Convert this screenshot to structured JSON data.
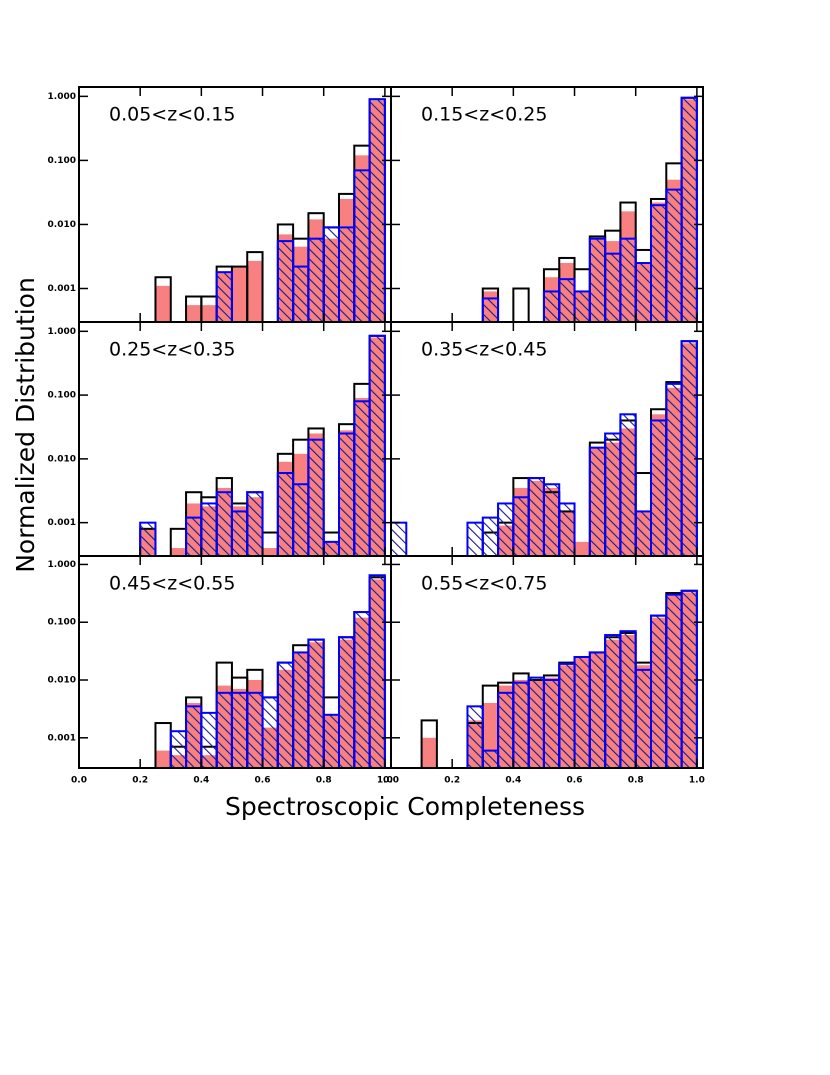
{
  "figure": {
    "xlabel": "Spectroscopic Completeness",
    "ylabel": "Normalized Distribution"
  },
  "chart_data": [
    {
      "type": "histogram",
      "title": "0.05<z<0.15",
      "log_y": true,
      "xlim": [
        0,
        1.02
      ],
      "ylim": [
        0.0003,
        1.4
      ],
      "bins": [
        0,
        0.05,
        0.1,
        0.15,
        0.2,
        0.25,
        0.3,
        0.35,
        0.4,
        0.45,
        0.5,
        0.55,
        0.6,
        0.65,
        0.7,
        0.75,
        0.8,
        0.85,
        0.9,
        0.95,
        1
      ],
      "xticks": [
        0,
        0.2,
        0.4,
        0.6,
        0.8,
        1
      ],
      "xtick_labels": false,
      "yticks": [
        {
          "value": 0.001,
          "label": "0.001"
        },
        {
          "value": 0.01,
          "label": "0.010"
        },
        {
          "value": 0.1,
          "label": "0.100"
        },
        {
          "value": 1,
          "label": "1.000"
        }
      ],
      "ytick_labels": true,
      "series": [
        {
          "style": "filled",
          "color": "#f88080",
          "values": [
            0,
            0,
            0,
            0,
            0,
            0.0011,
            0,
            0.00055,
            0.00055,
            0.0018,
            0.0022,
            0.0027,
            0,
            0.007,
            0.0045,
            0.012,
            0.006,
            0.025,
            0.12,
            0.85
          ]
        },
        {
          "style": "outline",
          "color": "#000000",
          "values": [
            0,
            0,
            0,
            0,
            0,
            0.0015,
            0,
            0.00075,
            0.00075,
            0.0022,
            0.0022,
            0.0037,
            0,
            0.01,
            0.006,
            0.015,
            0.009,
            0.03,
            0.17,
            0.9
          ]
        },
        {
          "style": "hatched",
          "color": "#0000ff",
          "values": [
            0,
            0,
            0,
            0,
            0,
            0,
            0,
            0,
            0,
            0.0018,
            0,
            0,
            0,
            0.0055,
            0.0022,
            0.006,
            0.009,
            0.009,
            0.07,
            0.9
          ]
        }
      ]
    },
    {
      "type": "histogram",
      "title": "0.15<z<0.25",
      "log_y": true,
      "xlim": [
        0,
        1.02
      ],
      "ylim": [
        0.0003,
        1.4
      ],
      "bins": [
        0,
        0.05,
        0.1,
        0.15,
        0.2,
        0.25,
        0.3,
        0.35,
        0.4,
        0.45,
        0.5,
        0.55,
        0.6,
        0.65,
        0.7,
        0.75,
        0.8,
        0.85,
        0.9,
        0.95,
        1
      ],
      "xticks": [
        0,
        0.2,
        0.4,
        0.6,
        0.8,
        1
      ],
      "xtick_labels": false,
      "yticks": [
        0.001,
        0.01,
        0.1,
        1
      ],
      "ytick_labels": false,
      "series": [
        {
          "style": "filled",
          "color": "#f88080",
          "values": [
            0,
            0,
            0,
            0,
            0,
            0,
            0.0009,
            0,
            0,
            0,
            0.0015,
            0.0025,
            0.0009,
            0.006,
            0.0055,
            0.016,
            0.0025,
            0.022,
            0.05,
            0.9
          ]
        },
        {
          "style": "outline",
          "color": "#000000",
          "values": [
            0,
            0,
            0,
            0,
            0,
            0,
            0.001,
            0,
            0.001,
            0,
            0.002,
            0.003,
            0.002,
            0.0065,
            0.008,
            0.022,
            0.004,
            0.025,
            0.09,
            0.95
          ]
        },
        {
          "style": "hatched",
          "color": "#0000ff",
          "values": [
            0,
            0,
            0,
            0,
            0,
            0,
            0.0007,
            0,
            0,
            0,
            0.0009,
            0.0014,
            0.0009,
            0.006,
            0.0035,
            0.006,
            0.0025,
            0.02,
            0.035,
            0.95
          ]
        }
      ]
    },
    {
      "type": "histogram",
      "title": "0.25<z<0.35",
      "log_y": true,
      "xlim": [
        0,
        1.02
      ],
      "ylim": [
        0.0003,
        1.4
      ],
      "bins": [
        0,
        0.05,
        0.1,
        0.15,
        0.2,
        0.25,
        0.3,
        0.35,
        0.4,
        0.45,
        0.5,
        0.55,
        0.6,
        0.65,
        0.7,
        0.75,
        0.8,
        0.85,
        0.9,
        0.95,
        1
      ],
      "xticks": [
        0,
        0.2,
        0.4,
        0.6,
        0.8,
        1
      ],
      "xtick_labels": false,
      "yticks": [
        {
          "value": 0.001,
          "label": "0.001"
        },
        {
          "value": 0.01,
          "label": "0.010"
        },
        {
          "value": 0.1,
          "label": "0.100"
        },
        {
          "value": 1,
          "label": "1.000"
        }
      ],
      "ytick_labels": true,
      "series": [
        {
          "style": "filled",
          "color": "#f88080",
          "values": [
            0,
            0,
            0,
            0,
            0.0008,
            0,
            0.0004,
            0.002,
            0.0018,
            0.0035,
            0.0018,
            0.0025,
            0.0004,
            0.009,
            0.012,
            0.025,
            0.0005,
            0.028,
            0.09,
            0.8
          ]
        },
        {
          "style": "outline",
          "color": "#000000",
          "values": [
            0,
            0,
            0,
            0,
            0.0008,
            0,
            0.0008,
            0.003,
            0.0025,
            0.005,
            0.002,
            0.003,
            0.0007,
            0.012,
            0.02,
            0.03,
            0.0007,
            0.035,
            0.15,
            0.85
          ]
        },
        {
          "style": "hatched",
          "color": "#0000ff",
          "values": [
            0,
            0,
            0,
            0,
            0.001,
            0,
            0,
            0.0012,
            0.002,
            0.003,
            0.0015,
            0.003,
            0,
            0.006,
            0.004,
            0.02,
            0.0005,
            0.025,
            0.08,
            0.85
          ]
        }
      ]
    },
    {
      "type": "histogram",
      "title": "0.35<z<0.45",
      "log_y": true,
      "xlim": [
        0,
        1.02
      ],
      "ylim": [
        0.0003,
        1.4
      ],
      "bins": [
        0,
        0.05,
        0.1,
        0.15,
        0.2,
        0.25,
        0.3,
        0.35,
        0.4,
        0.45,
        0.5,
        0.55,
        0.6,
        0.65,
        0.7,
        0.75,
        0.8,
        0.85,
        0.9,
        0.95,
        1
      ],
      "xticks": [
        0,
        0.2,
        0.4,
        0.6,
        0.8,
        1
      ],
      "xtick_labels": false,
      "yticks": [
        0.001,
        0.01,
        0.1,
        1
      ],
      "ytick_labels": false,
      "series": [
        {
          "style": "filled",
          "color": "#f88080",
          "values": [
            0,
            0,
            0,
            0,
            0,
            0,
            0,
            0.0009,
            0.0035,
            0.0045,
            0.0035,
            0.0015,
            0.0005,
            0.015,
            0.018,
            0.03,
            0.0015,
            0.05,
            0.13,
            0.65
          ]
        },
        {
          "style": "outline",
          "color": "#000000",
          "values": [
            0,
            0,
            0,
            0,
            0,
            0,
            0.0007,
            0.001,
            0.005,
            0.005,
            0.003,
            0.0015,
            0,
            0.018,
            0.02,
            0.04,
            0.006,
            0.06,
            0.16,
            0.7
          ]
        },
        {
          "style": "hatched",
          "color": "#0000ff",
          "values": [
            0.001,
            0,
            0,
            0,
            0,
            0.001,
            0.0012,
            0.002,
            0.0025,
            0.005,
            0.004,
            0.002,
            0,
            0.015,
            0.025,
            0.05,
            0.0015,
            0.04,
            0.15,
            0.7
          ]
        }
      ]
    },
    {
      "type": "histogram",
      "title": "0.45<z<0.55",
      "log_y": true,
      "xlim": [
        0,
        1.02
      ],
      "ylim": [
        0.0003,
        1.4
      ],
      "bins": [
        0,
        0.05,
        0.1,
        0.15,
        0.2,
        0.25,
        0.3,
        0.35,
        0.4,
        0.45,
        0.5,
        0.55,
        0.6,
        0.65,
        0.7,
        0.75,
        0.8,
        0.85,
        0.9,
        0.95,
        1
      ],
      "xticks": [
        {
          "value": 0,
          "label": "0.0"
        },
        {
          "value": 0.2,
          "label": "0.2"
        },
        {
          "value": 0.4,
          "label": "0.4"
        },
        {
          "value": 0.6,
          "label": "0.6"
        },
        {
          "value": 0.8,
          "label": "0.8"
        },
        {
          "value": 1,
          "label": "1.0"
        }
      ],
      "xtick_labels": true,
      "yticks": [
        {
          "value": 0.001,
          "label": "0.001"
        },
        {
          "value": 0.01,
          "label": "0.010"
        },
        {
          "value": 0.1,
          "label": "0.100"
        },
        {
          "value": 1,
          "label": "1.000"
        }
      ],
      "ytick_labels": true,
      "series": [
        {
          "style": "filled",
          "color": "#f88080",
          "values": [
            0,
            0,
            0,
            0,
            0,
            0.0006,
            0.0005,
            0.004,
            0.0005,
            0.008,
            0.007,
            0.01,
            0.0015,
            0.015,
            0.03,
            0.045,
            0.0025,
            0.05,
            0.12,
            0.55
          ]
        },
        {
          "style": "outline",
          "color": "#000000",
          "values": [
            0,
            0,
            0,
            0,
            0,
            0.0018,
            0.0007,
            0.005,
            0.0007,
            0.02,
            0.011,
            0.015,
            0.005,
            0.02,
            0.04,
            0.05,
            0.005,
            0.055,
            0.15,
            0.6
          ]
        },
        {
          "style": "hatched",
          "color": "#0000ff",
          "values": [
            0,
            0,
            0,
            0,
            0,
            0,
            0.0013,
            0.0035,
            0.0027,
            0.006,
            0.006,
            0.006,
            0.005,
            0.02,
            0.03,
            0.05,
            0.0025,
            0.055,
            0.15,
            0.65
          ]
        }
      ]
    },
    {
      "type": "histogram",
      "title": "0.55<z<0.75",
      "log_y": true,
      "xlim": [
        0,
        1.02
      ],
      "ylim": [
        0.0003,
        1.4
      ],
      "bins": [
        0,
        0.05,
        0.1,
        0.15,
        0.2,
        0.25,
        0.3,
        0.35,
        0.4,
        0.45,
        0.5,
        0.55,
        0.6,
        0.65,
        0.7,
        0.75,
        0.8,
        0.85,
        0.9,
        0.95,
        1
      ],
      "xticks": [
        {
          "value": 0,
          "label": "0.0"
        },
        {
          "value": 0.2,
          "label": "0.2"
        },
        {
          "value": 0.4,
          "label": "0.4"
        },
        {
          "value": 0.6,
          "label": "0.6"
        },
        {
          "value": 0.8,
          "label": "0.8"
        },
        {
          "value": 1,
          "label": "1.0"
        }
      ],
      "xtick_labels": true,
      "yticks": [
        0.001,
        0.01,
        0.1,
        1
      ],
      "ytick_labels": false,
      "series": [
        {
          "style": "filled",
          "color": "#f88080",
          "values": [
            0,
            0,
            0.001,
            0,
            0,
            0.002,
            0.004,
            0.008,
            0.01,
            0.01,
            0.011,
            0.018,
            0.024,
            0.03,
            0.05,
            0.06,
            0.018,
            0.12,
            0.3,
            0.33
          ]
        },
        {
          "style": "outline",
          "color": "#000000",
          "values": [
            0,
            0,
            0.002,
            0,
            0,
            0.0018,
            0.008,
            0.009,
            0.013,
            0.01,
            0.012,
            0.02,
            0.025,
            0.03,
            0.055,
            0.065,
            0.02,
            0.13,
            0.32,
            0.35
          ]
        },
        {
          "style": "hatched",
          "color": "#0000ff",
          "values": [
            0,
            0,
            0,
            0,
            0,
            0.0035,
            0.0006,
            0.006,
            0.009,
            0.011,
            0.01,
            0.019,
            0.025,
            0.03,
            0.06,
            0.07,
            0.015,
            0.13,
            0.3,
            0.35
          ]
        }
      ]
    }
  ]
}
